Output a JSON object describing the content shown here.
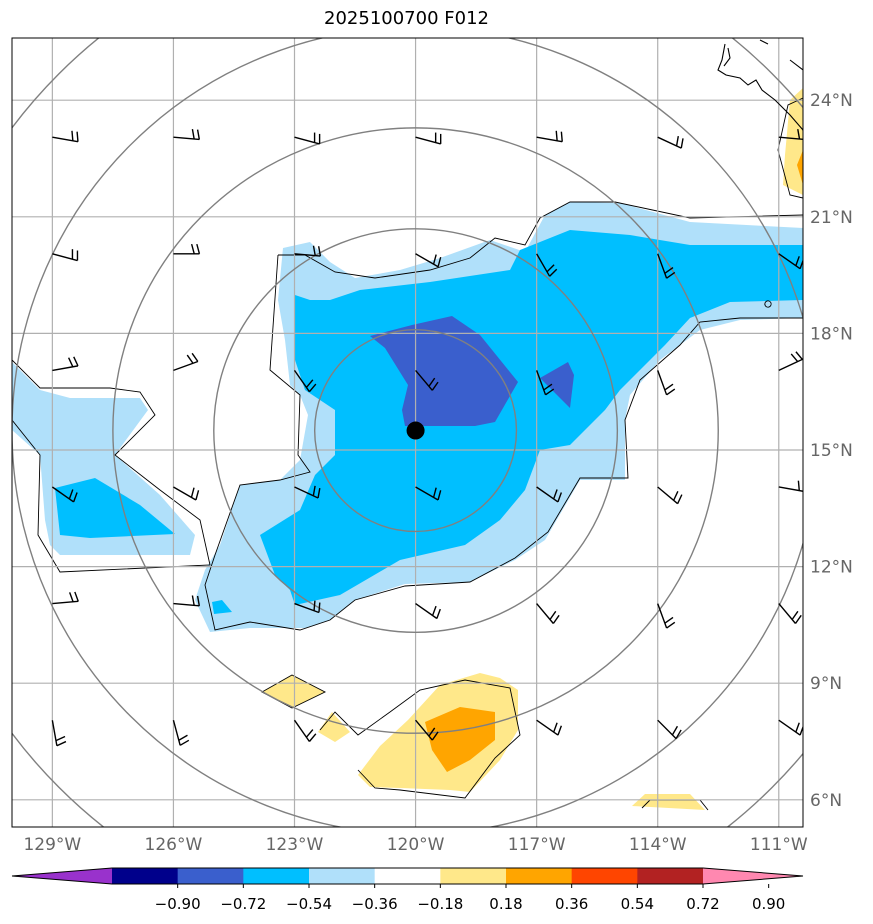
{
  "title": "2025100700 F012",
  "map": {
    "lon_range": [
      -130,
      -110.4
    ],
    "lat_range": [
      5.3,
      25.6
    ],
    "lat_ticks": [
      {
        "value": 24,
        "label": "24°N"
      },
      {
        "value": 21,
        "label": "21°N"
      },
      {
        "value": 18,
        "label": "18°N"
      },
      {
        "value": 15,
        "label": "15°N"
      },
      {
        "value": 12,
        "label": "12°N"
      },
      {
        "value": 9,
        "label": "9°N"
      },
      {
        "value": 6,
        "label": "6°N"
      }
    ],
    "lon_ticks": [
      {
        "value": -129,
        "label": "129°W"
      },
      {
        "value": -126,
        "label": "126°W"
      },
      {
        "value": -123,
        "label": "123°W"
      },
      {
        "value": -120,
        "label": "120°W"
      },
      {
        "value": -117,
        "label": "117°W"
      },
      {
        "value": -114,
        "label": "114°W"
      },
      {
        "value": -111,
        "label": "111°W"
      }
    ],
    "storm_center": {
      "lon": -120.0,
      "lat": 15.5
    },
    "range_rings_deg": [
      2.5,
      5.0,
      7.5,
      10.0,
      12.5
    ]
  },
  "colorbar": {
    "labels": [
      "−0.90",
      "−0.72",
      "−0.54",
      "−0.36",
      "−0.18",
      "0.18",
      "0.36",
      "0.54",
      "0.72",
      "0.90"
    ],
    "colors": [
      "#9932cc",
      "#00008b",
      "#3a5fcd",
      "#00bfff",
      "#b0e0fa",
      "#ffffff",
      "#ffe88a",
      "#ffa500",
      "#ff4500",
      "#b22222",
      "#ff88b0"
    ]
  },
  "colors": {
    "neg_light": "#b0e0fa",
    "neg_mid": "#00bfff",
    "neg_strong": "#3a5fcd",
    "pos_light": "#ffe88a",
    "pos_mid": "#ffa500",
    "grid": "#b0b0b0",
    "ring": "#808080",
    "tick_text": "#666666"
  }
}
